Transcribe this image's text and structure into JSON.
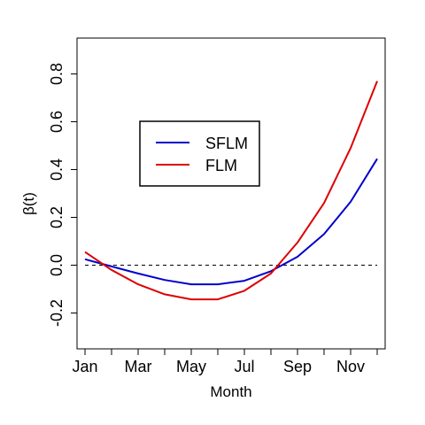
{
  "chart_data": {
    "type": "line",
    "xlabel": "Month",
    "ylabel": "β(t)",
    "x_ticks": [
      {
        "x": 1,
        "label": "Jan"
      },
      {
        "x": 2,
        "label": ""
      },
      {
        "x": 3,
        "label": "Mar"
      },
      {
        "x": 4,
        "label": ""
      },
      {
        "x": 5,
        "label": "May"
      },
      {
        "x": 6,
        "label": ""
      },
      {
        "x": 7,
        "label": "Jul"
      },
      {
        "x": 8,
        "label": ""
      },
      {
        "x": 9,
        "label": "Sep"
      },
      {
        "x": 10,
        "label": ""
      },
      {
        "x": 11,
        "label": "Nov"
      },
      {
        "x": 12,
        "label": ""
      }
    ],
    "y_ticks": [
      -0.2,
      0.0,
      0.2,
      0.4,
      0.6,
      0.8
    ],
    "y_tick_labels": [
      "-0.2",
      "0.0",
      "0.2",
      "0.4",
      "0.6",
      "0.8"
    ],
    "xlim": [
      0.7,
      12.3
    ],
    "ylim": [
      -0.35,
      0.95
    ],
    "grid": false,
    "reference_line": {
      "y": 0.0,
      "style": "dashed",
      "color": "#000000"
    },
    "legend": {
      "placement": "upper-left-center"
    },
    "series": [
      {
        "name": "SFLM",
        "color": "#0000CC",
        "x": [
          1,
          2,
          3,
          4,
          5,
          6,
          7,
          8,
          9,
          10,
          11,
          12
        ],
        "y": [
          0.025,
          -0.005,
          -0.035,
          -0.062,
          -0.08,
          -0.08,
          -0.065,
          -0.025,
          0.035,
          0.13,
          0.265,
          0.445
        ]
      },
      {
        "name": "FLM",
        "color": "#DD0000",
        "x": [
          1,
          2,
          3,
          4,
          5,
          6,
          7,
          8,
          9,
          10,
          11,
          12
        ],
        "y": [
          0.055,
          -0.02,
          -0.08,
          -0.122,
          -0.143,
          -0.143,
          -0.107,
          -0.035,
          0.095,
          0.26,
          0.49,
          0.77
        ]
      }
    ]
  }
}
